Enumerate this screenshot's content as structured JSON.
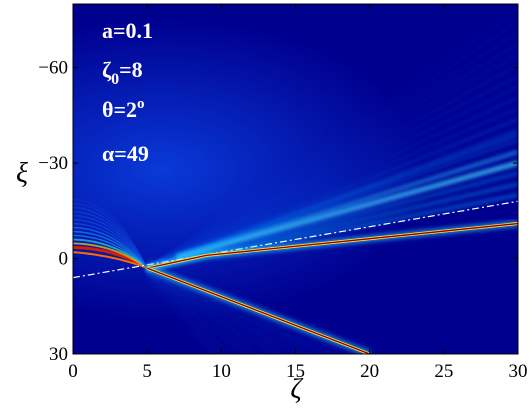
{
  "chart_data": {
    "type": "heatmap",
    "xlabel": "ζ",
    "ylabel": "ξ",
    "xlim": [
      0,
      30
    ],
    "ylim": [
      -80,
      30
    ],
    "y_reversed": true,
    "x_ticks": [
      0,
      5,
      10,
      15,
      20,
      25,
      30
    ],
    "x_tick_labels": [
      "0",
      "5",
      "10",
      "15",
      "20",
      "25",
      "30"
    ],
    "y_ticks": [
      -60,
      -30,
      0,
      30
    ],
    "y_tick_labels": [
      "−60",
      "−30",
      "0",
      "30"
    ],
    "colormap": "jet",
    "annotations": [
      {
        "key": "a",
        "text": "a=0.1"
      },
      {
        "key": "zeta0",
        "base": "ζ",
        "sub": "0",
        "rest": "=8"
      },
      {
        "key": "theta",
        "base": "θ=2",
        "sup": "o"
      },
      {
        "key": "alpha",
        "text": "α=49"
      }
    ],
    "bright_rays": [
      {
        "from": [
          5,
          3
        ],
        "to": [
          9,
          -1
        ],
        "then_to": [
          30,
          -11
        ]
      },
      {
        "from": [
          5,
          3
        ],
        "to": [
          20,
          30
        ]
      }
    ],
    "guide_line": {
      "style": "dash-dot",
      "color": "#ffffff",
      "from": [
        0,
        6
      ],
      "to": [
        30,
        -18
      ]
    },
    "source_beam": {
      "x_range": [
        0,
        5
      ],
      "center": [
        0,
        -3.5
      ],
      "focus": [
        5,
        3
      ]
    }
  }
}
